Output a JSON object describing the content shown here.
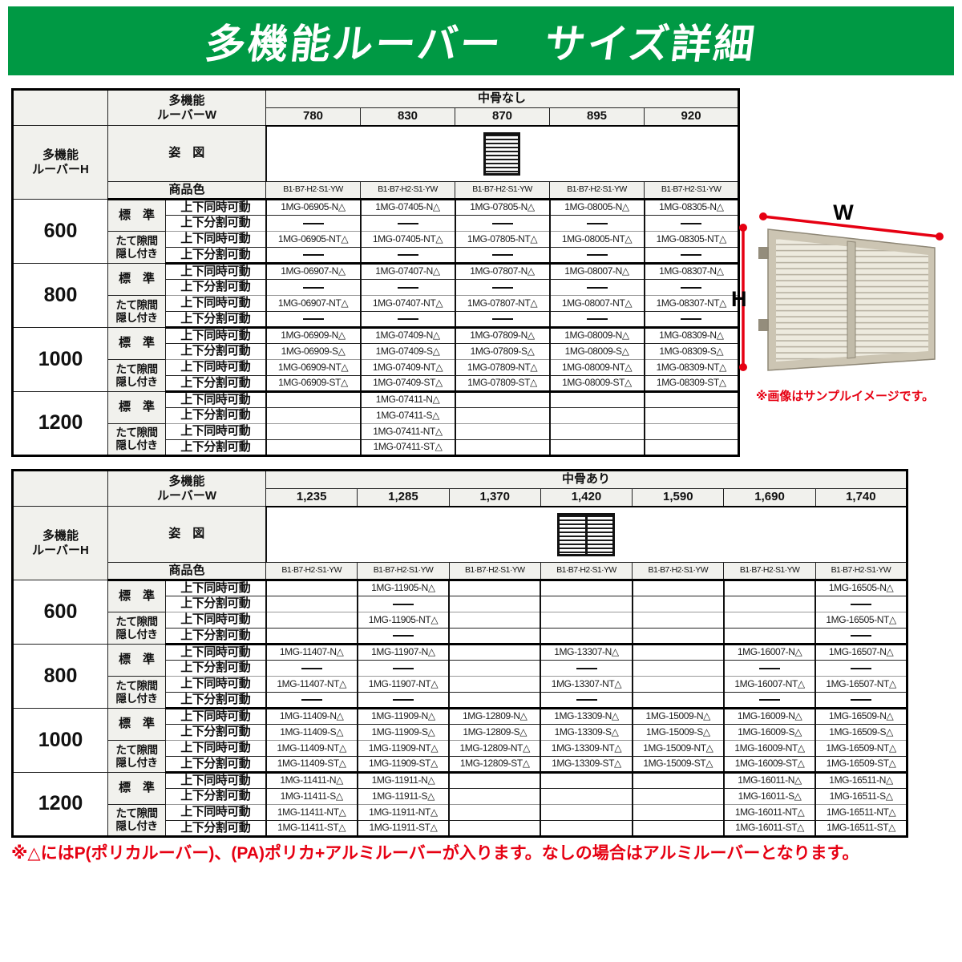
{
  "banner": {
    "title": "多機能ルーバー　サイズ詳細"
  },
  "colors": {
    "banner_green": "#009944",
    "accent_red": "#e60012",
    "note_red": "#e60012"
  },
  "labels": {
    "louver_w_line1": "多機能",
    "louver_w_line2": "ルーバーW",
    "louver_h_line1": "多機能",
    "louver_h_line2": "ルーバーH",
    "figure": "姿　図",
    "product_color": "商品色",
    "standard": "標　準",
    "gap_line1": "たて隙間",
    "gap_line2": "隠し付き",
    "move_sync": "上下同時可動",
    "move_split": "上下分割可動",
    "color_codes": "B1·B7·H2·S1·YW"
  },
  "photo": {
    "w_label": "W",
    "h_label": "H",
    "caption": "※画像はサンプルイメージです。"
  },
  "note": {
    "text": "※△にはP(ポリカルーバー)、(PA)ポリカ+アルミルーバーが入ります。なしの場合はアルミルーバーとなります。"
  },
  "tables": [
    {
      "name": "spec-table-no-center-bone",
      "bone_label": "中骨なし",
      "center_bar": false,
      "widths": [
        "780",
        "830",
        "870",
        "895",
        "920"
      ],
      "heights": [
        {
          "height": "600",
          "cells": [
            [
              "1MG-06905-N△",
              "1MG-07405-N△",
              "1MG-07805-N△",
              "1MG-08005-N△",
              "1MG-08305-N△"
            ],
            [
              "—",
              "—",
              "—",
              "—",
              "—"
            ],
            [
              "1MG-06905-NT△",
              "1MG-07405-NT△",
              "1MG-07805-NT△",
              "1MG-08005-NT△",
              "1MG-08305-NT△"
            ],
            [
              "—",
              "—",
              "—",
              "—",
              "—"
            ]
          ]
        },
        {
          "height": "800",
          "cells": [
            [
              "1MG-06907-N△",
              "1MG-07407-N△",
              "1MG-07807-N△",
              "1MG-08007-N△",
              "1MG-08307-N△"
            ],
            [
              "—",
              "—",
              "—",
              "—",
              "—"
            ],
            [
              "1MG-06907-NT△",
              "1MG-07407-NT△",
              "1MG-07807-NT△",
              "1MG-08007-NT△",
              "1MG-08307-NT△"
            ],
            [
              "—",
              "—",
              "—",
              "—",
              "—"
            ]
          ]
        },
        {
          "height": "1000",
          "cells": [
            [
              "1MG-06909-N△",
              "1MG-07409-N△",
              "1MG-07809-N△",
              "1MG-08009-N△",
              "1MG-08309-N△"
            ],
            [
              "1MG-06909-S△",
              "1MG-07409-S△",
              "1MG-07809-S△",
              "1MG-08009-S△",
              "1MG-08309-S△"
            ],
            [
              "1MG-06909-NT△",
              "1MG-07409-NT△",
              "1MG-07809-NT△",
              "1MG-08009-NT△",
              "1MG-08309-NT△"
            ],
            [
              "1MG-06909-ST△",
              "1MG-07409-ST△",
              "1MG-07809-ST△",
              "1MG-08009-ST△",
              "1MG-08309-ST△"
            ]
          ]
        },
        {
          "height": "1200",
          "cells": [
            [
              "",
              "1MG-07411-N△",
              "",
              "",
              ""
            ],
            [
              "",
              "1MG-07411-S△",
              "",
              "",
              ""
            ],
            [
              "",
              "1MG-07411-NT△",
              "",
              "",
              ""
            ],
            [
              "",
              "1MG-07411-ST△",
              "",
              "",
              ""
            ]
          ]
        }
      ]
    },
    {
      "name": "spec-table-with-center-bone",
      "bone_label": "中骨あり",
      "center_bar": true,
      "widths": [
        "1,235",
        "1,285",
        "1,370",
        "1,420",
        "1,590",
        "1,690",
        "1,740"
      ],
      "heights": [
        {
          "height": "600",
          "cells": [
            [
              "",
              "1MG-11905-N△",
              "",
              "",
              "",
              "",
              "1MG-16505-N△"
            ],
            [
              "",
              "—",
              "",
              "",
              "",
              "",
              "—"
            ],
            [
              "",
              "1MG-11905-NT△",
              "",
              "",
              "",
              "",
              "1MG-16505-NT△"
            ],
            [
              "",
              "—",
              "",
              "",
              "",
              "",
              "—"
            ]
          ]
        },
        {
          "height": "800",
          "cells": [
            [
              "1MG-11407-N△",
              "1MG-11907-N△",
              "",
              "1MG-13307-N△",
              "",
              "1MG-16007-N△",
              "1MG-16507-N△"
            ],
            [
              "—",
              "—",
              "",
              "—",
              "",
              "—",
              "—"
            ],
            [
              "1MG-11407-NT△",
              "1MG-11907-NT△",
              "",
              "1MG-13307-NT△",
              "",
              "1MG-16007-NT△",
              "1MG-16507-NT△"
            ],
            [
              "—",
              "—",
              "",
              "—",
              "",
              "—",
              "—"
            ]
          ]
        },
        {
          "height": "1000",
          "cells": [
            [
              "1MG-11409-N△",
              "1MG-11909-N△",
              "1MG-12809-N△",
              "1MG-13309-N△",
              "1MG-15009-N△",
              "1MG-16009-N△",
              "1MG-16509-N△"
            ],
            [
              "1MG-11409-S△",
              "1MG-11909-S△",
              "1MG-12809-S△",
              "1MG-13309-S△",
              "1MG-15009-S△",
              "1MG-16009-S△",
              "1MG-16509-S△"
            ],
            [
              "1MG-11409-NT△",
              "1MG-11909-NT△",
              "1MG-12809-NT△",
              "1MG-13309-NT△",
              "1MG-15009-NT△",
              "1MG-16009-NT△",
              "1MG-16509-NT△"
            ],
            [
              "1MG-11409-ST△",
              "1MG-11909-ST△",
              "1MG-12809-ST△",
              "1MG-13309-ST△",
              "1MG-15009-ST△",
              "1MG-16009-ST△",
              "1MG-16509-ST△"
            ]
          ]
        },
        {
          "height": "1200",
          "cells": [
            [
              "1MG-11411-N△",
              "1MG-11911-N△",
              "",
              "",
              "",
              "1MG-16011-N△",
              "1MG-16511-N△"
            ],
            [
              "1MG-11411-S△",
              "1MG-11911-S△",
              "",
              "",
              "",
              "1MG-16011-S△",
              "1MG-16511-S△"
            ],
            [
              "1MG-11411-NT△",
              "1MG-11911-NT△",
              "",
              "",
              "",
              "1MG-16011-NT△",
              "1MG-16511-NT△"
            ],
            [
              "1MG-11411-ST△",
              "1MG-11911-ST△",
              "",
              "",
              "",
              "1MG-16011-ST△",
              "1MG-16511-ST△"
            ]
          ]
        }
      ]
    }
  ]
}
